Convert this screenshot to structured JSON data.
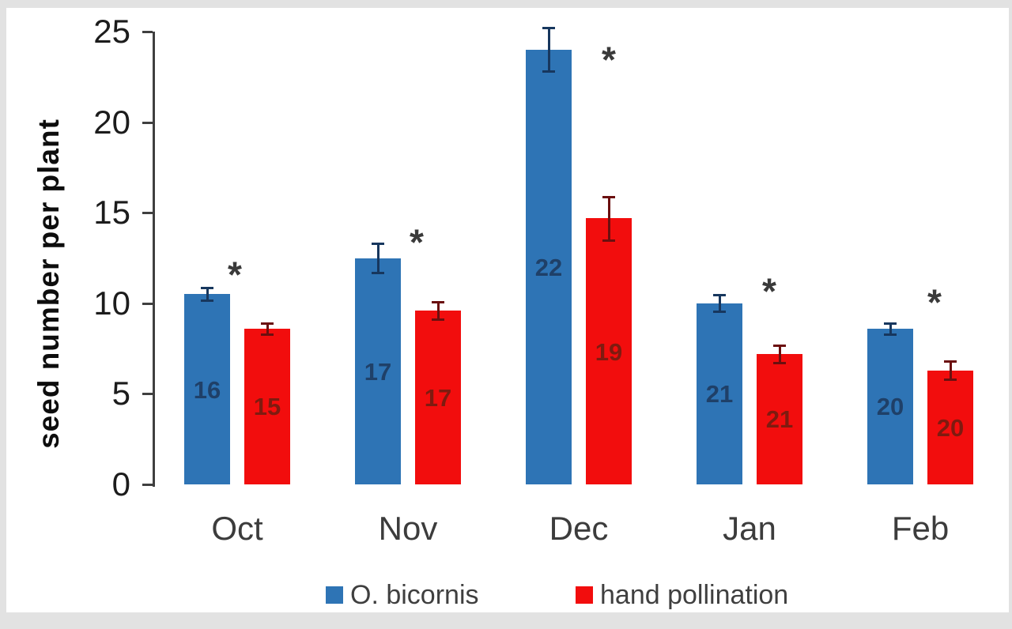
{
  "chart_data": {
    "type": "bar",
    "title": "",
    "xlabel": "",
    "ylabel": "seed number per plant",
    "ylim": [
      0,
      25
    ],
    "yticks": [
      0,
      5,
      10,
      15,
      20,
      25
    ],
    "grid": false,
    "legend_position": "bottom",
    "categories": [
      "Oct",
      "Nov",
      "Dec",
      "Jan",
      "Feb"
    ],
    "series": [
      {
        "name": "O. bicornis",
        "color": "#2E74B5",
        "values": [
          10.5,
          12.5,
          24.0,
          10.0,
          8.6
        ],
        "errors": [
          0.35,
          0.8,
          1.2,
          0.45,
          0.3
        ],
        "bar_labels": [
          "16",
          "17",
          "22",
          "21",
          "20"
        ],
        "label_color": "#1F4068",
        "error_color": "#17375E"
      },
      {
        "name": "hand pollination",
        "color": "#F20D0D",
        "values": [
          8.6,
          9.6,
          14.7,
          7.2,
          6.3
        ],
        "errors": [
          0.3,
          0.5,
          1.2,
          0.5,
          0.5
        ],
        "bar_labels": [
          "15",
          "17",
          "19",
          "21",
          "20"
        ],
        "label_color": "#7E1B10",
        "error_color": "#6B0F0F"
      }
    ],
    "annotations": [
      {
        "group": "Oct",
        "text": "*",
        "y": 11.9,
        "dx": -3
      },
      {
        "group": "Nov",
        "text": "*",
        "y": 13.7,
        "dx": 11
      },
      {
        "group": "Dec",
        "text": "*",
        "y": 23.8,
        "dx": 38
      },
      {
        "group": "Jan",
        "text": "*",
        "y": 11.0,
        "dx": 25
      },
      {
        "group": "Feb",
        "text": "*",
        "y": 10.4,
        "dx": 18
      }
    ],
    "axis_color": "#3f3f3f"
  }
}
